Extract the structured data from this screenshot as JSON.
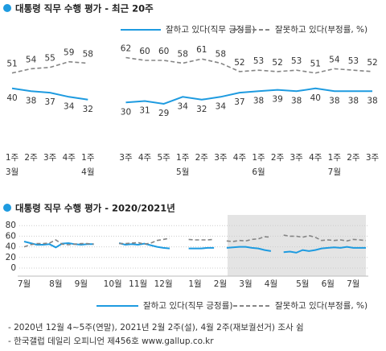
{
  "chart_data": [
    {
      "type": "line",
      "title": "대통령 직무 수행 평가 - 최근 20주",
      "categories": [
        "1주",
        "2주",
        "3주",
        "4주",
        "1주",
        null,
        "3주",
        "4주",
        "5주",
        "1주",
        "2주",
        "3주",
        "4주",
        "1주",
        "2주",
        "3주",
        "4주",
        "1주",
        "2주",
        "3주"
      ],
      "month_labels": [
        "3월",
        null,
        null,
        null,
        "4월",
        null,
        null,
        null,
        null,
        "5월",
        null,
        null,
        null,
        "6월",
        null,
        null,
        null,
        "7월",
        null,
        null
      ],
      "series": [
        {
          "name": "잘하고 있다(직무 긍정률)",
          "color": "#1e9be0",
          "style": "solid",
          "values": [
            40,
            38,
            37,
            34,
            32,
            null,
            30,
            31,
            29,
            34,
            32,
            34,
            37,
            38,
            39,
            38,
            40,
            38,
            38,
            38
          ]
        },
        {
          "name": "잘못하고 있다(부정률, %)",
          "color": "#858585",
          "style": "dashed",
          "values": [
            51,
            54,
            55,
            59,
            58,
            null,
            62,
            60,
            60,
            58,
            61,
            58,
            52,
            53,
            52,
            53,
            51,
            54,
            53,
            52
          ]
        }
      ]
    },
    {
      "type": "line",
      "title": "대통령 직무 수행 평가 - 2020/2021년",
      "categories": [
        "7월",
        null,
        null,
        null,
        null,
        "8월",
        null,
        null,
        null,
        "9월",
        null,
        null,
        null,
        null,
        "10월",
        null,
        null,
        null,
        "11월",
        null,
        null,
        null,
        "12월",
        null,
        null,
        null,
        null,
        "1월",
        null,
        null,
        null,
        "2월",
        null,
        null,
        null,
        "3월",
        null,
        null,
        null,
        "4월",
        null,
        null,
        null,
        null,
        "5월",
        null,
        null,
        null,
        "6월",
        null,
        null,
        null,
        "7월",
        null,
        null
      ],
      "ylim": [
        0,
        100
      ],
      "yticks": [
        0,
        20,
        40,
        60,
        80
      ],
      "grid": true,
      "series": [
        {
          "name": "잘하고 있다(직무 긍정률)",
          "color": "#1e9be0",
          "style": "solid",
          "values": [
            50,
            47,
            44,
            44,
            45,
            39,
            46,
            47,
            45,
            44,
            45,
            45,
            null,
            null,
            null,
            47,
            44,
            45,
            44,
            46,
            43,
            40,
            38,
            37,
            null,
            null,
            37,
            37,
            37,
            38,
            38,
            null,
            38,
            39,
            40,
            40,
            38,
            37,
            34,
            32,
            null,
            30,
            31,
            29,
            34,
            32,
            34,
            37,
            38,
            39,
            38,
            40,
            38,
            38,
            38
          ]
        },
        {
          "name": "잘못하고 있다(부정률, %)",
          "color": "#858585",
          "style": "dashed",
          "values": [
            40,
            44,
            46,
            46,
            47,
            53,
            45,
            44,
            45,
            46,
            46,
            45,
            null,
            null,
            null,
            46,
            46,
            47,
            48,
            45,
            47,
            52,
            54,
            56,
            null,
            null,
            54,
            53,
            53,
            53,
            54,
            null,
            51,
            50,
            52,
            51,
            54,
            55,
            59,
            58,
            null,
            62,
            60,
            60,
            58,
            61,
            58,
            52,
            53,
            52,
            53,
            51,
            54,
            53,
            52
          ]
        }
      ]
    }
  ],
  "footnotes": [
    "- 2020년 12월 4~5주(연말), 2021년 2월 2주(설), 4월 2주(재보궐선거) 조사 쉼",
    "- 한국갤럽 데일리 오피니언 제456호 www.gallup.co.kr"
  ]
}
